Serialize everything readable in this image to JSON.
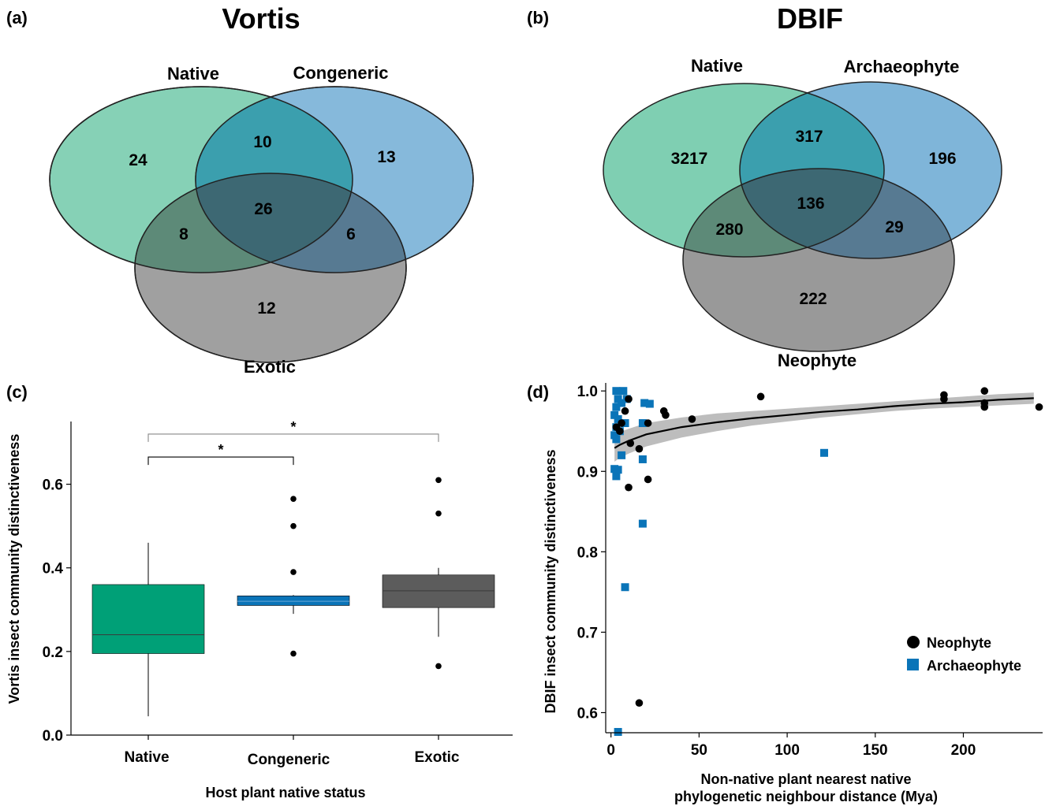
{
  "panels": {
    "a": "(a)",
    "b": "(b)",
    "c": "(c)",
    "d": "(d)"
  },
  "colors": {
    "native": "#00a077",
    "congeneric": "#0a74b8",
    "exotic": "#5c5c5c",
    "venn_native": "#7fcfb2",
    "venn_blue": "#7fb5d9",
    "venn_grey": "#999999",
    "neophyte": "#000000",
    "archaeophyte": "#0a74b8",
    "ribbon": "#bdbdbd"
  },
  "chart_data": [
    {
      "type": "venn",
      "title": "Vortis",
      "sets": [
        "Native",
        "Congeneric",
        "Exotic"
      ],
      "regions": {
        "only_1": "24",
        "only_2": "13",
        "only_3": "12",
        "s12": "10",
        "s13": "8",
        "s23": "6",
        "s123": "26"
      }
    },
    {
      "type": "venn",
      "title": "DBIF",
      "sets": [
        "Native",
        "Archaeophyte",
        "Neophyte"
      ],
      "regions": {
        "only_1": "3217",
        "only_2": "196",
        "only_3": "222",
        "s12": "317",
        "s13": "280",
        "s23": "29",
        "s123": "136"
      }
    },
    {
      "type": "boxplot",
      "title": "",
      "xlabel": "Host plant native status",
      "ylabel": "Vortis insect community distinctiveness",
      "ylim": [
        0,
        0.75
      ],
      "yticks": [
        0,
        0.2,
        0.4,
        0.6
      ],
      "ytick_labels": [
        "0.0",
        "0.2",
        "0.4",
        "0.6"
      ],
      "categories": [
        "Native",
        "Congeneric",
        "Exotic"
      ],
      "boxes": [
        {
          "name": "Native",
          "q1": 0.195,
          "median": 0.24,
          "q3": 0.36,
          "whisker_low": 0.045,
          "whisker_high": 0.46,
          "outliers": []
        },
        {
          "name": "Congeneric",
          "q1": 0.31,
          "median": 0.32,
          "q3": 0.333,
          "whisker_low": 0.29,
          "whisker_high": 0.335,
          "outliers": [
            0.565,
            0.5,
            0.39,
            0.195
          ]
        },
        {
          "name": "Exotic",
          "q1": 0.305,
          "median": 0.345,
          "q3": 0.383,
          "whisker_low": 0.235,
          "whisker_high": 0.4,
          "outliers": [
            0.61,
            0.53,
            0.165
          ]
        }
      ],
      "significance": [
        {
          "from": 0,
          "to": 1,
          "y": 0.665,
          "label": "*"
        },
        {
          "from": 0,
          "to": 2,
          "y": 0.72,
          "label": "*"
        }
      ]
    },
    {
      "type": "scatter",
      "title": "",
      "xlabel_lines": [
        "Non-native plant nearest native",
        "phylogenetic neighbour distance (Mya)"
      ],
      "ylabel": "DBIF insect community distinctiveness",
      "xlim": [
        -3,
        245
      ],
      "ylim": [
        0.575,
        1.01
      ],
      "xticks": [
        0,
        50,
        100,
        150,
        200
      ],
      "xtick_labels": [
        "0",
        "50",
        "100",
        "150",
        "200"
      ],
      "yticks": [
        0.6,
        0.7,
        0.8,
        0.9,
        1.0
      ],
      "ytick_labels": [
        "0.6",
        "0.7",
        "0.8",
        "0.9",
        "1.0"
      ],
      "legend_position": "bottom-right",
      "series": [
        {
          "name": "Neophyte",
          "marker": "circle",
          "points": [
            [
              3,
              0.955
            ],
            [
              5,
              0.95
            ],
            [
              6,
              0.96
            ],
            [
              8,
              0.975
            ],
            [
              10,
              0.99
            ],
            [
              11,
              0.935
            ],
            [
              16,
              0.928
            ],
            [
              21,
              0.96
            ],
            [
              16,
              0.612
            ],
            [
              21,
              0.89
            ],
            [
              10,
              0.88
            ],
            [
              30,
              0.975
            ],
            [
              31,
              0.97
            ],
            [
              46,
              0.965
            ],
            [
              85,
              0.993
            ],
            [
              189,
              0.995
            ],
            [
              189,
              0.99
            ],
            [
              212,
              1.0
            ],
            [
              212,
              0.985
            ],
            [
              212,
              0.98
            ],
            [
              243,
              0.98
            ]
          ]
        },
        {
          "name": "Archaeophyte",
          "marker": "square",
          "points": [
            [
              3,
              1.0
            ],
            [
              7,
              1.0
            ],
            [
              4,
              0.99
            ],
            [
              6,
              0.985
            ],
            [
              3,
              0.98
            ],
            [
              9,
              0.99
            ],
            [
              2,
              0.97
            ],
            [
              4,
              0.965
            ],
            [
              8,
              0.96
            ],
            [
              3,
              0.955
            ],
            [
              5,
              0.95
            ],
            [
              2,
              0.945
            ],
            [
              3,
              0.94
            ],
            [
              19,
              0.985
            ],
            [
              22,
              0.984
            ],
            [
              18,
              0.96
            ],
            [
              6,
              0.92
            ],
            [
              18,
              0.915
            ],
            [
              2,
              0.903
            ],
            [
              4,
              0.902
            ],
            [
              3,
              0.894
            ],
            [
              121,
              0.923
            ],
            [
              18,
              0.835
            ],
            [
              8,
              0.756
            ],
            [
              4,
              0.576
            ]
          ]
        }
      ],
      "fit": {
        "x": [
          2,
          5,
          10,
          20,
          40,
          60,
          80,
          100,
          120,
          140,
          160,
          180,
          200,
          220,
          240
        ],
        "y": [
          0.929,
          0.933,
          0.938,
          0.946,
          0.955,
          0.961,
          0.966,
          0.97,
          0.974,
          0.977,
          0.981,
          0.984,
          0.986,
          0.989,
          0.991
        ],
        "lower": [
          0.912,
          0.917,
          0.922,
          0.931,
          0.942,
          0.95,
          0.957,
          0.962,
          0.967,
          0.971,
          0.975,
          0.978,
          0.98,
          0.982,
          0.984
        ],
        "upper": [
          0.946,
          0.949,
          0.953,
          0.96,
          0.967,
          0.972,
          0.975,
          0.978,
          0.981,
          0.984,
          0.987,
          0.99,
          0.993,
          0.996,
          0.998
        ]
      }
    }
  ]
}
